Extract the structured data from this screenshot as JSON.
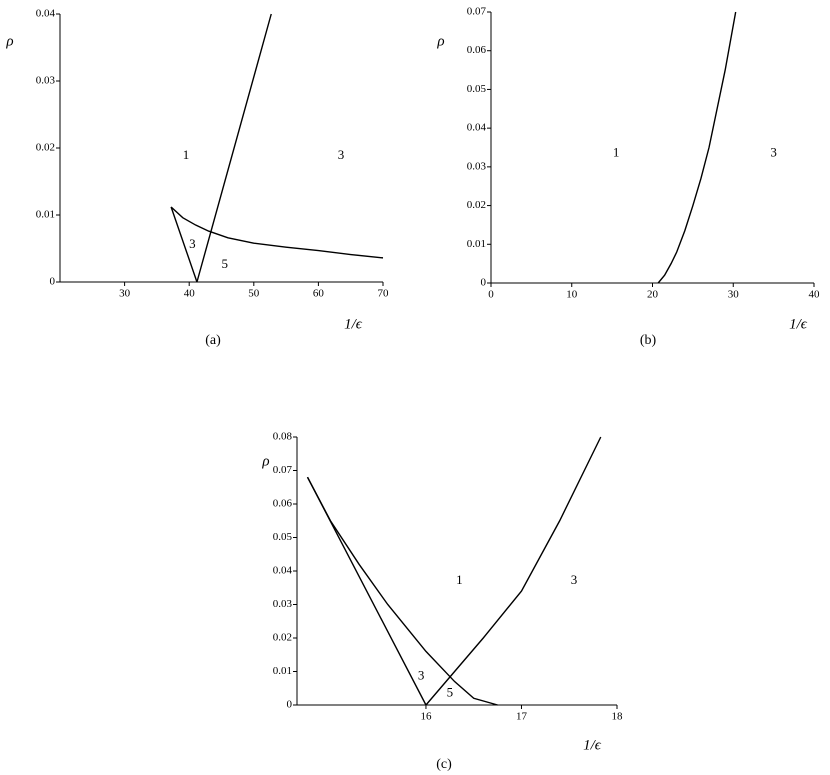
{
  "chart_data": [
    {
      "type": "line",
      "caption": "(a)",
      "x_label": "1/ϵ",
      "y_label": "ρ",
      "xlim": [
        20,
        70
      ],
      "ylim": [
        0,
        0.04
      ],
      "xticks": [
        30,
        40,
        50,
        60,
        70
      ],
      "yticks": [
        0,
        0.01,
        0.02,
        0.03,
        0.04
      ],
      "series": [
        {
          "color": "#000000",
          "x": [
            41.2,
            52.7
          ],
          "values": [
            0,
            0.04
          ]
        },
        {
          "color": "#000000",
          "x": [
            37.2,
            41.2
          ],
          "values": [
            0.0112,
            0
          ]
        },
        {
          "color": "#000000",
          "x": [
            37.2,
            39,
            41,
            43,
            46,
            50,
            55,
            60,
            65,
            70
          ],
          "values": [
            0.0112,
            0.0096,
            0.0085,
            0.0076,
            0.0066,
            0.0058,
            0.0052,
            0.0047,
            0.0041,
            0.0036
          ]
        }
      ],
      "annotations": [
        {
          "text": "1",
          "x": 39.5,
          "y": 0.0188
        },
        {
          "text": "3",
          "x": 63.5,
          "y": 0.0188
        },
        {
          "text": "3",
          "x": 40.5,
          "y": 0.0055
        },
        {
          "text": "5",
          "x": 45.5,
          "y": 0.0025
        }
      ]
    },
    {
      "type": "line",
      "caption": "(b)",
      "x_label": "1/ϵ",
      "y_label": "ρ",
      "xlim": [
        0,
        40
      ],
      "ylim": [
        0,
        0.07
      ],
      "xticks": [
        0,
        10,
        20,
        30,
        40
      ],
      "yticks": [
        0,
        0.01,
        0.02,
        0.03,
        0.04,
        0.05,
        0.06,
        0.07
      ],
      "series": [
        {
          "color": "#000000",
          "x": [
            20.7,
            21.5,
            22.3,
            23,
            24,
            25,
            26,
            27,
            28,
            29,
            30.3
          ],
          "values": [
            0,
            0.002,
            0.005,
            0.008,
            0.0135,
            0.02,
            0.027,
            0.035,
            0.045,
            0.055,
            0.07
          ]
        }
      ],
      "annotations": [
        {
          "text": "1",
          "x": 15.5,
          "y": 0.0335
        },
        {
          "text": "3",
          "x": 35,
          "y": 0.0335
        }
      ]
    },
    {
      "type": "line",
      "caption": "(c)",
      "x_label": "1/ϵ",
      "y_label": "ρ",
      "xlim": [
        14.65,
        18
      ],
      "ylim": [
        0,
        0.08
      ],
      "xticks": [
        16,
        17,
        18
      ],
      "yticks": [
        0,
        0.01,
        0.02,
        0.03,
        0.04,
        0.05,
        0.06,
        0.07,
        0.08
      ],
      "series": [
        {
          "color": "#000000",
          "x": [
            14.76,
            16.0
          ],
          "values": [
            0.068,
            0
          ]
        },
        {
          "color": "#000000",
          "x": [
            16.0,
            16.3,
            16.6,
            17,
            17.4,
            17.83
          ],
          "values": [
            0,
            0.01,
            0.02,
            0.034,
            0.055,
            0.08
          ]
        },
        {
          "color": "#000000",
          "x": [
            14.76,
            15,
            15.3,
            15.6,
            16,
            16.3,
            16.5,
            16.75
          ],
          "values": [
            0.068,
            0.055,
            0.042,
            0.03,
            0.016,
            0.007,
            0.002,
            0
          ]
        }
      ],
      "annotations": [
        {
          "text": "1",
          "x": 16.35,
          "y": 0.037
        },
        {
          "text": "3",
          "x": 17.55,
          "y": 0.037
        },
        {
          "text": "3",
          "x": 15.95,
          "y": 0.0085
        },
        {
          "text": "5",
          "x": 16.25,
          "y": 0.0035
        }
      ]
    }
  ]
}
